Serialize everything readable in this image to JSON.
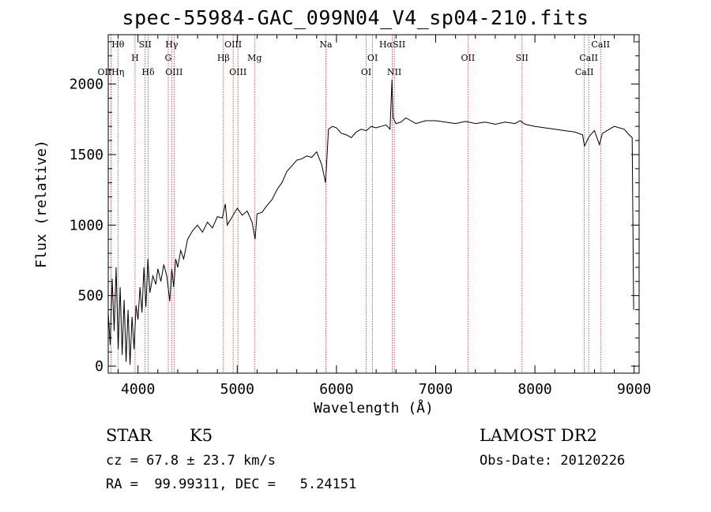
{
  "chart_data": {
    "type": "line",
    "title": "spec-55984-GAC_099N04_V4_sp04-210.fits",
    "xlabel": "Wavelength (Å)",
    "ylabel": "Flux (relative)",
    "xlim": [
      3700,
      9050
    ],
    "ylim": [
      -50,
      2350
    ],
    "xticks": [
      "4000",
      "5000",
      "6000",
      "7000",
      "8000",
      "9000"
    ],
    "yticks": [
      "0",
      "500",
      "1000",
      "1500",
      "2000"
    ],
    "grid": false,
    "series": [
      {
        "values": [
          [
            3700,
            380
          ],
          [
            3720,
            150
          ],
          [
            3740,
            620
          ],
          [
            3760,
            250
          ],
          [
            3780,
            700
          ],
          [
            3800,
            120
          ],
          [
            3820,
            560
          ],
          [
            3840,
            80
          ],
          [
            3860,
            470
          ],
          [
            3880,
            30
          ],
          [
            3900,
            400
          ],
          [
            3920,
            10
          ],
          [
            3940,
            350
          ],
          [
            3960,
            120
          ],
          [
            3980,
            430
          ],
          [
            4000,
            330
          ],
          [
            4020,
            560
          ],
          [
            4040,
            380
          ],
          [
            4060,
            700
          ],
          [
            4080,
            420
          ],
          [
            4100,
            760
          ],
          [
            4120,
            520
          ],
          [
            4150,
            640
          ],
          [
            4180,
            580
          ],
          [
            4200,
            690
          ],
          [
            4230,
            600
          ],
          [
            4260,
            720
          ],
          [
            4290,
            640
          ],
          [
            4320,
            460
          ],
          [
            4340,
            690
          ],
          [
            4360,
            560
          ],
          [
            4380,
            760
          ],
          [
            4400,
            700
          ],
          [
            4430,
            820
          ],
          [
            4460,
            760
          ],
          [
            4500,
            900
          ],
          [
            4550,
            960
          ],
          [
            4600,
            1000
          ],
          [
            4650,
            950
          ],
          [
            4700,
            1020
          ],
          [
            4750,
            980
          ],
          [
            4800,
            1060
          ],
          [
            4850,
            1050
          ],
          [
            4880,
            1150
          ],
          [
            4900,
            1000
          ],
          [
            4950,
            1060
          ],
          [
            5000,
            1120
          ],
          [
            5050,
            1070
          ],
          [
            5100,
            1100
          ],
          [
            5150,
            1020
          ],
          [
            5180,
            900
          ],
          [
            5200,
            1080
          ],
          [
            5250,
            1090
          ],
          [
            5300,
            1140
          ],
          [
            5350,
            1180
          ],
          [
            5400,
            1250
          ],
          [
            5450,
            1300
          ],
          [
            5500,
            1380
          ],
          [
            5550,
            1420
          ],
          [
            5600,
            1460
          ],
          [
            5650,
            1470
          ],
          [
            5700,
            1490
          ],
          [
            5750,
            1480
          ],
          [
            5800,
            1520
          ],
          [
            5850,
            1430
          ],
          [
            5890,
            1300
          ],
          [
            5920,
            1680
          ],
          [
            5960,
            1700
          ],
          [
            6000,
            1690
          ],
          [
            6050,
            1650
          ],
          [
            6100,
            1640
          ],
          [
            6150,
            1620
          ],
          [
            6200,
            1660
          ],
          [
            6250,
            1680
          ],
          [
            6300,
            1670
          ],
          [
            6350,
            1700
          ],
          [
            6400,
            1690
          ],
          [
            6450,
            1700
          ],
          [
            6500,
            1710
          ],
          [
            6540,
            1680
          ],
          [
            6560,
            2030
          ],
          [
            6570,
            1760
          ],
          [
            6600,
            1720
          ],
          [
            6650,
            1730
          ],
          [
            6700,
            1760
          ],
          [
            6750,
            1740
          ],
          [
            6800,
            1720
          ],
          [
            6900,
            1740
          ],
          [
            7000,
            1740
          ],
          [
            7100,
            1730
          ],
          [
            7200,
            1720
          ],
          [
            7300,
            1735
          ],
          [
            7400,
            1720
          ],
          [
            7500,
            1730
          ],
          [
            7600,
            1715
          ],
          [
            7700,
            1730
          ],
          [
            7800,
            1720
          ],
          [
            7850,
            1740
          ],
          [
            7900,
            1715
          ],
          [
            8000,
            1700
          ],
          [
            8100,
            1690
          ],
          [
            8200,
            1680
          ],
          [
            8300,
            1670
          ],
          [
            8400,
            1660
          ],
          [
            8480,
            1640
          ],
          [
            8500,
            1560
          ],
          [
            8540,
            1620
          ],
          [
            8560,
            1640
          ],
          [
            8600,
            1670
          ],
          [
            8650,
            1570
          ],
          [
            8680,
            1650
          ],
          [
            8750,
            1680
          ],
          [
            8800,
            1700
          ],
          [
            8850,
            1690
          ],
          [
            8900,
            1680
          ],
          [
            8950,
            1640
          ],
          [
            8980,
            1620
          ],
          [
            8995,
            400
          ]
        ]
      }
    ],
    "lines": [
      {
        "label": "H&#952;",
        "x": 3798,
        "row": 0
      },
      {
        "label": "SII",
        "x": 4072,
        "row": 0
      },
      {
        "label": "H&#947;",
        "x": 4340,
        "row": 0
      },
      {
        "label": "OIII",
        "x": 4959,
        "row": 0
      },
      {
        "label": "Na",
        "x": 5893,
        "row": 0
      },
      {
        "label": "H&#945;SII",
        "x": 6563,
        "row": 0
      },
      {
        "label": "CaII",
        "x": 8662,
        "row": 0
      },
      {
        "label": "H",
        "x": 3970,
        "row": 1
      },
      {
        "label": "G",
        "x": 4305,
        "row": 1
      },
      {
        "label": "H&#946;",
        "x": 4861,
        "row": 1
      },
      {
        "label": "Mg",
        "x": 5175,
        "row": 1
      },
      {
        "label": "OI",
        "x": 6364,
        "row": 1
      },
      {
        "label": "OII",
        "x": 7325,
        "row": 1
      },
      {
        "label": "SII",
        "x": 7870,
        "row": 1
      },
      {
        "label": "CaII",
        "x": 8542,
        "row": 1
      },
      {
        "label": "OIIH&#951;",
        "x": 3727,
        "row": 2
      },
      {
        "label": "H&#948;",
        "x": 4102,
        "row": 2
      },
      {
        "label": "OIII",
        "x": 4363,
        "row": 2
      },
      {
        "label": "OIII",
        "x": 5007,
        "row": 2
      },
      {
        "label": "OI",
        "x": 6300,
        "row": 2
      },
      {
        "label": "NII",
        "x": 6583,
        "row": 2
      },
      {
        "label": "CaII",
        "x": 8498,
        "row": 2
      }
    ]
  },
  "info": {
    "class": "STAR",
    "subclass": "K5",
    "survey": "LAMOST DR2",
    "cz": "cz = 67.8 ± 23.7 km/s",
    "obs_date": "Obs-Date: 20120226",
    "radec": "RA =  99.99311, DEC =   5.24151"
  }
}
